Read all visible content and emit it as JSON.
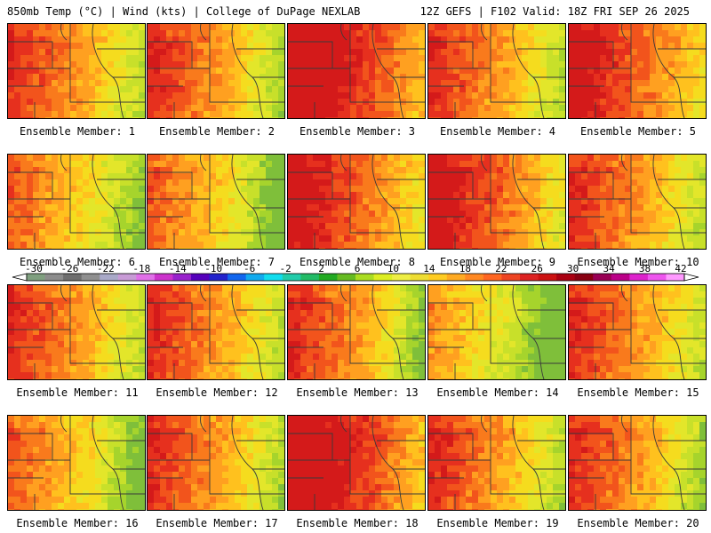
{
  "header": {
    "title": "850mb Temp (°C) | Wind (kts) | College of DuPage NEXLAB",
    "run_info": "12Z GEFS | F102 Valid: 18Z FRI SEP 26 2025"
  },
  "members": [
    {
      "label": "Ensemble Member: 1",
      "hot": 1.0,
      "cool": 0.3
    },
    {
      "label": "Ensemble Member: 2",
      "hot": 1.0,
      "cool": 0.5
    },
    {
      "label": "Ensemble Member: 3",
      "hot": 1.2,
      "cool": 0.2
    },
    {
      "label": "Ensemble Member: 4",
      "hot": 1.0,
      "cool": 0.3
    },
    {
      "label": "Ensemble Member: 5",
      "hot": 1.1,
      "cool": 0.1
    },
    {
      "label": "Ensemble Member: 6",
      "hot": 0.9,
      "cool": 0.3
    },
    {
      "label": "Ensemble Member: 7",
      "hot": 0.9,
      "cool": 0.7
    },
    {
      "label": "Ensemble Member: 8",
      "hot": 1.1,
      "cool": 0.2
    },
    {
      "label": "Ensemble Member: 9",
      "hot": 1.1,
      "cool": 0.4
    },
    {
      "label": "Ensemble Member: 10",
      "hot": 1.0,
      "cool": 0.3
    },
    {
      "label": "Ensemble Member: 11",
      "hot": 1.0,
      "cool": 0.3
    },
    {
      "label": "Ensemble Member: 12",
      "hot": 1.0,
      "cool": 0.3
    },
    {
      "label": "Ensemble Member: 13",
      "hot": 1.0,
      "cool": 0.8
    },
    {
      "label": "Ensemble Member: 14",
      "hot": 0.8,
      "cool": 0.7
    },
    {
      "label": "Ensemble Member: 15",
      "hot": 1.0,
      "cool": 0.2
    },
    {
      "label": "Ensemble Member: 16",
      "hot": 0.9,
      "cool": 0.6
    },
    {
      "label": "Ensemble Member: 17",
      "hot": 1.0,
      "cool": 0.5
    },
    {
      "label": "Ensemble Member: 18",
      "hot": 1.2,
      "cool": 0.3
    },
    {
      "label": "Ensemble Member: 19",
      "hot": 1.0,
      "cool": 0.4
    },
    {
      "label": "Ensemble Member: 20",
      "hot": 1.0,
      "cool": 0.6
    }
  ],
  "colorbar": {
    "tick_labels": [
      "-30",
      "-26",
      "-22",
      "-18",
      "-14",
      "-10",
      "-6",
      "-2",
      "2",
      "6",
      "10",
      "14",
      "18",
      "22",
      "26",
      "30",
      "34",
      "38",
      "42"
    ],
    "colors": [
      "#7f9f7f",
      "#8c8c8c",
      "#6e6e6e",
      "#8f8f8f",
      "#a9a9c8",
      "#c89bd6",
      "#e070e8",
      "#cc33cc",
      "#9922cc",
      "#5500bb",
      "#2222cc",
      "#1166ee",
      "#11aaee",
      "#11ddee",
      "#22ccaa",
      "#22bb66",
      "#22aa22",
      "#66bb22",
      "#aadd22",
      "#ddee22",
      "#eeee44",
      "#eedd33",
      "#ffcc22",
      "#ffaa22",
      "#ff8822",
      "#ff6622",
      "#ee4422",
      "#dd2222",
      "#cc1111",
      "#aa0011",
      "#880011",
      "#990055",
      "#bb0088",
      "#dd22cc",
      "#ee55ee",
      "#ff99ff"
    ]
  }
}
